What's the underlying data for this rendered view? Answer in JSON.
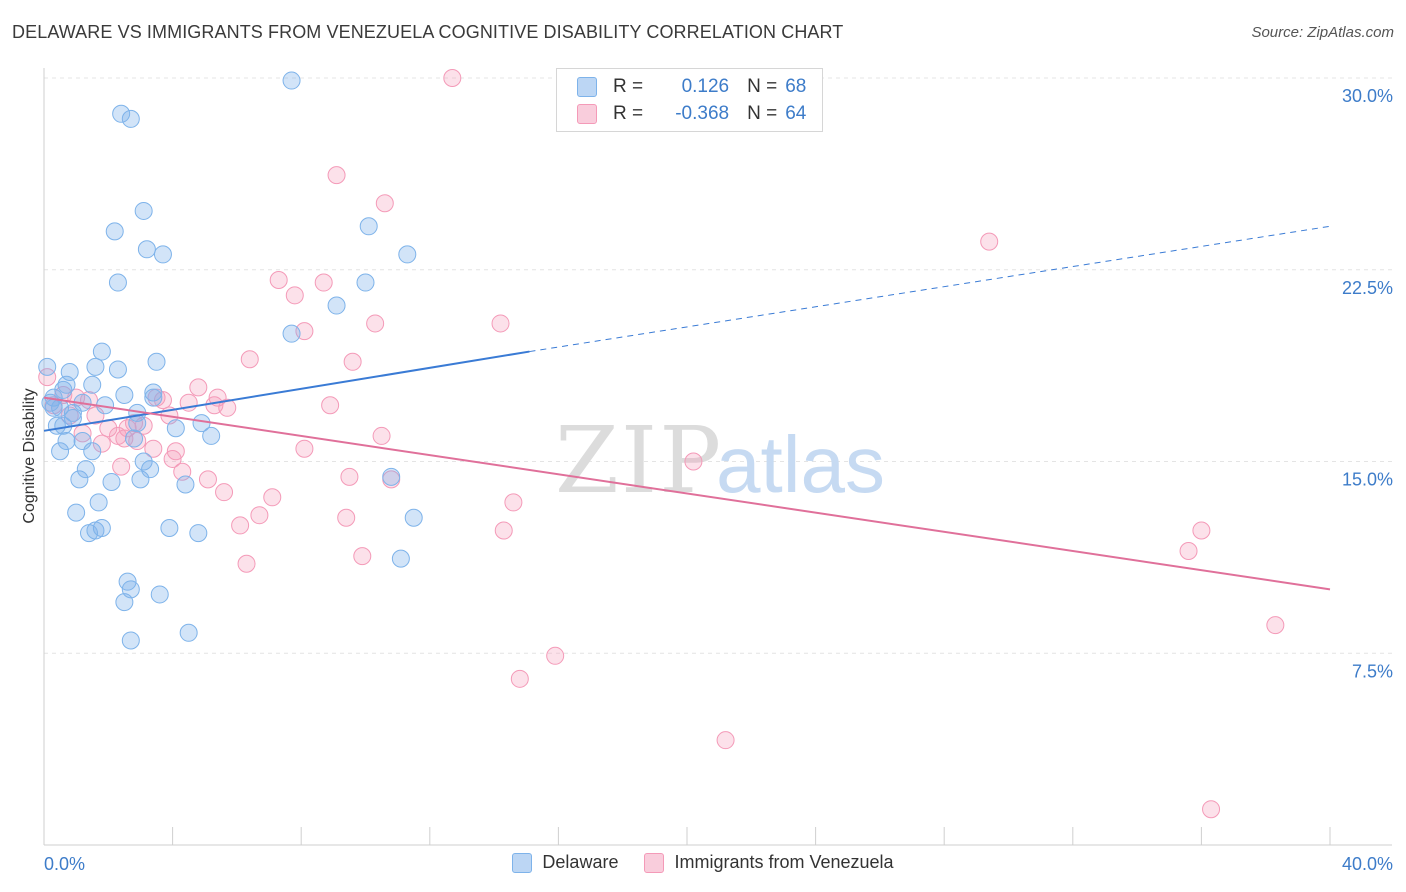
{
  "title": "DELAWARE VS IMMIGRANTS FROM VENEZUELA COGNITIVE DISABILITY CORRELATION CHART",
  "source": "Source: ZipAtlas.com",
  "watermark": {
    "zip": "ZIP",
    "atlas": "atlas"
  },
  "legend_top": {
    "rows": [
      {
        "r_label": "R =",
        "r_value": "0.126",
        "n_label": "N =",
        "n_value": "68",
        "color": "#7eb3ea"
      },
      {
        "r_label": "R =",
        "r_value": "-0.368",
        "n_label": "N =",
        "n_value": "64",
        "color": "#f49ab8"
      }
    ]
  },
  "legend_bottom": [
    {
      "label": "Delaware",
      "color": "#7eb3ea"
    },
    {
      "label": "Immigrants from Venezuela",
      "color": "#f49ab8"
    }
  ],
  "chart_data": {
    "type": "scatter",
    "ylabel": "Cognitive Disability",
    "xlim": [
      0,
      40
    ],
    "ylim": [
      0,
      30
    ],
    "y_ticks": [
      7.5,
      15.0,
      22.5,
      30.0
    ],
    "y_tick_labels": [
      "7.5%",
      "15.0%",
      "22.5%",
      "30.0%"
    ],
    "x_tick_labels": [
      "0.0%",
      "40.0%"
    ],
    "grid": "horizontal dashed",
    "series": [
      {
        "name": "Delaware",
        "color": "#7eb3ea",
        "trend": {
          "x": [
            0,
            15.1
          ],
          "y": [
            16.2,
            19.3
          ],
          "dashed_to": [
            40,
            24.2
          ],
          "color": "#3a7bd5"
        },
        "points": [
          [
            0.1,
            18.7
          ],
          [
            0.2,
            17.3
          ],
          [
            0.3,
            17.5
          ],
          [
            0.4,
            16.4
          ],
          [
            0.5,
            17.1
          ],
          [
            0.5,
            15.4
          ],
          [
            0.6,
            17.8
          ],
          [
            0.7,
            18.0
          ],
          [
            0.7,
            15.8
          ],
          [
            0.8,
            18.5
          ],
          [
            0.9,
            16.9
          ],
          [
            0.9,
            16.7
          ],
          [
            1.0,
            13.0
          ],
          [
            1.1,
            14.3
          ],
          [
            1.2,
            17.3
          ],
          [
            1.3,
            14.7
          ],
          [
            1.4,
            12.2
          ],
          [
            1.5,
            18.0
          ],
          [
            1.5,
            15.4
          ],
          [
            1.6,
            12.3
          ],
          [
            1.6,
            18.7
          ],
          [
            1.7,
            13.4
          ],
          [
            1.8,
            12.4
          ],
          [
            1.8,
            19.3
          ],
          [
            2.1,
            14.2
          ],
          [
            2.2,
            24.0
          ],
          [
            2.3,
            22.0
          ],
          [
            2.3,
            18.6
          ],
          [
            2.5,
            17.6
          ],
          [
            2.5,
            9.5
          ],
          [
            2.6,
            10.3
          ],
          [
            2.7,
            10.0
          ],
          [
            2.7,
            8.0
          ],
          [
            2.8,
            15.9
          ],
          [
            2.9,
            16.5
          ],
          [
            2.9,
            16.9
          ],
          [
            3.0,
            14.3
          ],
          [
            3.1,
            15.0
          ],
          [
            3.1,
            24.8
          ],
          [
            3.2,
            23.3
          ],
          [
            3.3,
            14.7
          ],
          [
            3.4,
            17.7
          ],
          [
            3.5,
            18.9
          ],
          [
            3.6,
            9.8
          ],
          [
            3.7,
            23.1
          ],
          [
            3.9,
            12.4
          ],
          [
            4.1,
            16.3
          ],
          [
            4.4,
            14.1
          ],
          [
            4.5,
            8.3
          ],
          [
            4.8,
            12.2
          ],
          [
            4.9,
            16.5
          ],
          [
            5.2,
            16.0
          ],
          [
            7.7,
            29.9
          ],
          [
            7.7,
            20.0
          ],
          [
            9.1,
            21.1
          ],
          [
            10.0,
            22.0
          ],
          [
            10.1,
            24.2
          ],
          [
            10.8,
            14.4
          ],
          [
            11.1,
            11.2
          ],
          [
            11.3,
            23.1
          ],
          [
            11.5,
            12.8
          ],
          [
            2.7,
            28.4
          ],
          [
            2.4,
            28.6
          ],
          [
            0.3,
            17.1
          ],
          [
            0.6,
            16.4
          ],
          [
            1.2,
            15.8
          ],
          [
            1.9,
            17.2
          ],
          [
            3.4,
            17.5
          ]
        ]
      },
      {
        "name": "Immigrants from Venezuela",
        "color": "#f49ab8",
        "trend": {
          "x": [
            0,
            40
          ],
          "y": [
            17.5,
            10.0
          ],
          "color": "#e0709a"
        },
        "points": [
          [
            0.1,
            18.3
          ],
          [
            0.3,
            17.2
          ],
          [
            0.6,
            17.6
          ],
          [
            0.8,
            16.8
          ],
          [
            1.0,
            17.5
          ],
          [
            1.2,
            16.1
          ],
          [
            1.4,
            17.4
          ],
          [
            1.6,
            16.8
          ],
          [
            1.8,
            15.7
          ],
          [
            2.0,
            16.3
          ],
          [
            2.3,
            16.0
          ],
          [
            2.4,
            14.8
          ],
          [
            2.6,
            16.3
          ],
          [
            2.8,
            16.5
          ],
          [
            2.9,
            15.8
          ],
          [
            3.1,
            16.4
          ],
          [
            3.4,
            15.5
          ],
          [
            3.5,
            17.5
          ],
          [
            3.7,
            17.4
          ],
          [
            3.9,
            16.8
          ],
          [
            4.0,
            15.1
          ],
          [
            4.1,
            15.4
          ],
          [
            4.3,
            14.6
          ],
          [
            4.5,
            17.3
          ],
          [
            4.8,
            17.9
          ],
          [
            5.1,
            14.3
          ],
          [
            5.3,
            17.2
          ],
          [
            5.4,
            17.5
          ],
          [
            5.6,
            13.8
          ],
          [
            5.7,
            17.1
          ],
          [
            6.1,
            12.5
          ],
          [
            6.3,
            11.0
          ],
          [
            6.4,
            19.0
          ],
          [
            6.7,
            12.9
          ],
          [
            7.1,
            13.6
          ],
          [
            7.3,
            22.1
          ],
          [
            7.8,
            21.5
          ],
          [
            8.1,
            20.1
          ],
          [
            8.1,
            15.5
          ],
          [
            8.7,
            22.0
          ],
          [
            8.9,
            17.2
          ],
          [
            9.1,
            26.2
          ],
          [
            9.4,
            12.8
          ],
          [
            9.5,
            14.4
          ],
          [
            9.6,
            18.9
          ],
          [
            9.9,
            11.3
          ],
          [
            10.3,
            20.4
          ],
          [
            10.5,
            16.0
          ],
          [
            10.6,
            25.1
          ],
          [
            10.8,
            14.3
          ],
          [
            12.7,
            30.0
          ],
          [
            14.2,
            20.4
          ],
          [
            14.3,
            12.3
          ],
          [
            14.6,
            13.4
          ],
          [
            14.8,
            6.5
          ],
          [
            15.9,
            7.4
          ],
          [
            20.2,
            15.0
          ],
          [
            21.2,
            4.1
          ],
          [
            29.4,
            23.6
          ],
          [
            35.6,
            11.5
          ],
          [
            36.0,
            12.3
          ],
          [
            36.3,
            1.4
          ],
          [
            38.3,
            8.6
          ],
          [
            2.5,
            15.9
          ]
        ]
      }
    ]
  }
}
